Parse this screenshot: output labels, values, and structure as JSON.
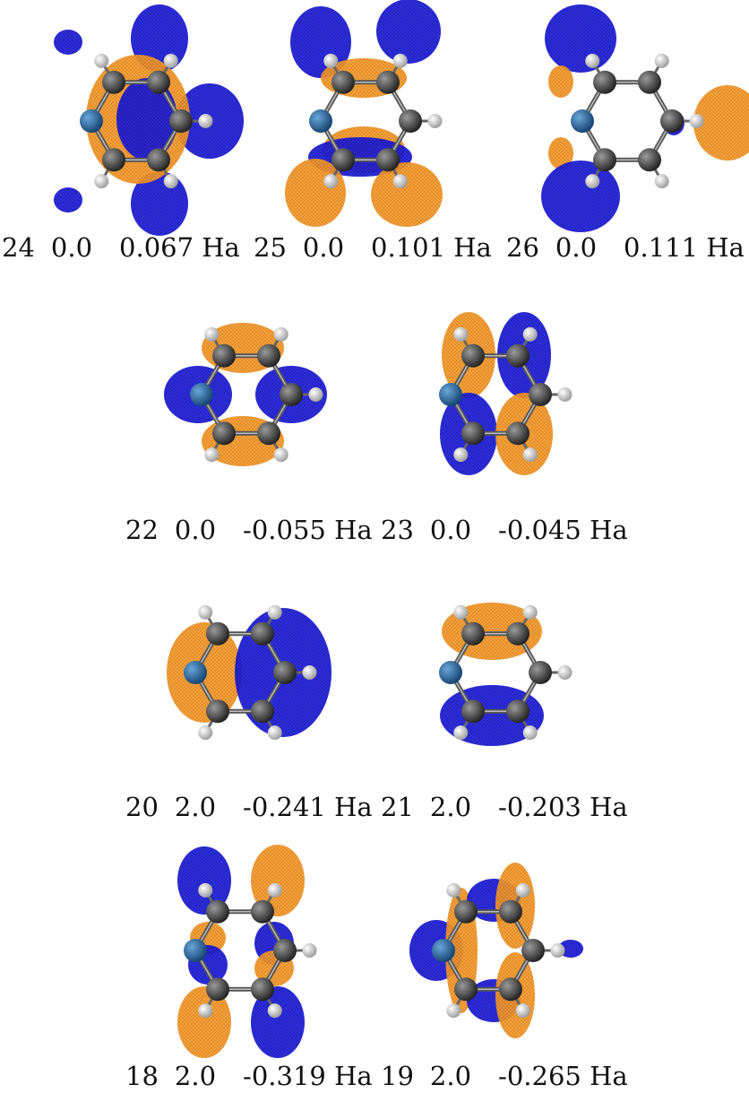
{
  "figure": {
    "unit": "Ha",
    "colors": {
      "positive_lobe": "#f2921e",
      "negative_lobe": "#1a1ad6",
      "carbon": "#3a3a3a",
      "nitrogen": "#1e5c95",
      "hydrogen": "#f0f0f0",
      "bond": "#555555"
    },
    "orbitals": [
      {
        "index": "24",
        "occupation": "0.0",
        "energy": "0.067 Ha"
      },
      {
        "index": "25",
        "occupation": "0.0",
        "energy": "0.101 Ha"
      },
      {
        "index": "26",
        "occupation": "0.0",
        "energy": "0.111 Ha"
      },
      {
        "index": "22",
        "occupation": "0.0",
        "energy": "-0.055 Ha"
      },
      {
        "index": "23",
        "occupation": "0.0",
        "energy": "-0.045 Ha"
      },
      {
        "index": "20",
        "occupation": "2.0",
        "energy": "-0.241 Ha"
      },
      {
        "index": "21",
        "occupation": "2.0",
        "energy": "-0.203 Ha"
      },
      {
        "index": "18",
        "occupation": "2.0",
        "energy": "-0.319 Ha"
      },
      {
        "index": "19",
        "occupation": "2.0",
        "energy": "-0.265 Ha"
      }
    ]
  }
}
